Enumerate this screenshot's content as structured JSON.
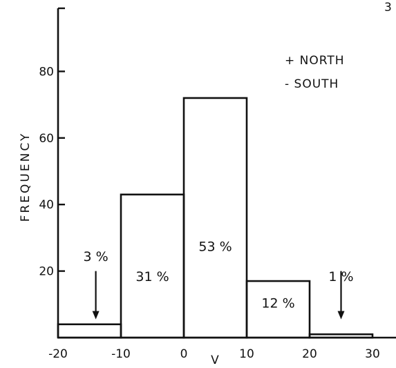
{
  "corner_mark": "3",
  "chart_data": {
    "type": "bar",
    "bins": [
      {
        "x0": -20,
        "x1": -10,
        "value": 4
      },
      {
        "x0": -10,
        "x1": 0,
        "value": 43
      },
      {
        "x0": 0,
        "x1": 10,
        "value": 72
      },
      {
        "x0": 10,
        "x1": 20,
        "value": 17
      },
      {
        "x0": 20,
        "x1": 30,
        "value": 1
      }
    ],
    "percent_labels": [
      "3 %",
      "31 %",
      "53 %",
      "12 %",
      "1 %"
    ],
    "title": "",
    "xlabel": "V",
    "ylabel": "FREQUENCY",
    "xlim": [
      -20,
      30
    ],
    "ylim": [
      0,
      100
    ],
    "x_ticks": [
      -20,
      -10,
      0,
      10,
      20,
      30
    ],
    "x_tick_labels": [
      "-20",
      "-10",
      "0",
      "10",
      "20",
      "30"
    ],
    "y_ticks": [
      20,
      40,
      60,
      80
    ],
    "y_tick_labels": [
      "20",
      "40",
      "60",
      "80"
    ],
    "legend": {
      "placement": "top-right",
      "entries": [
        "+ NORTH",
        "- SOUTH"
      ]
    },
    "arrows": [
      {
        "label": "3 %",
        "x": -14
      },
      {
        "label": "1 %",
        "x": 25
      }
    ],
    "grid": false
  }
}
